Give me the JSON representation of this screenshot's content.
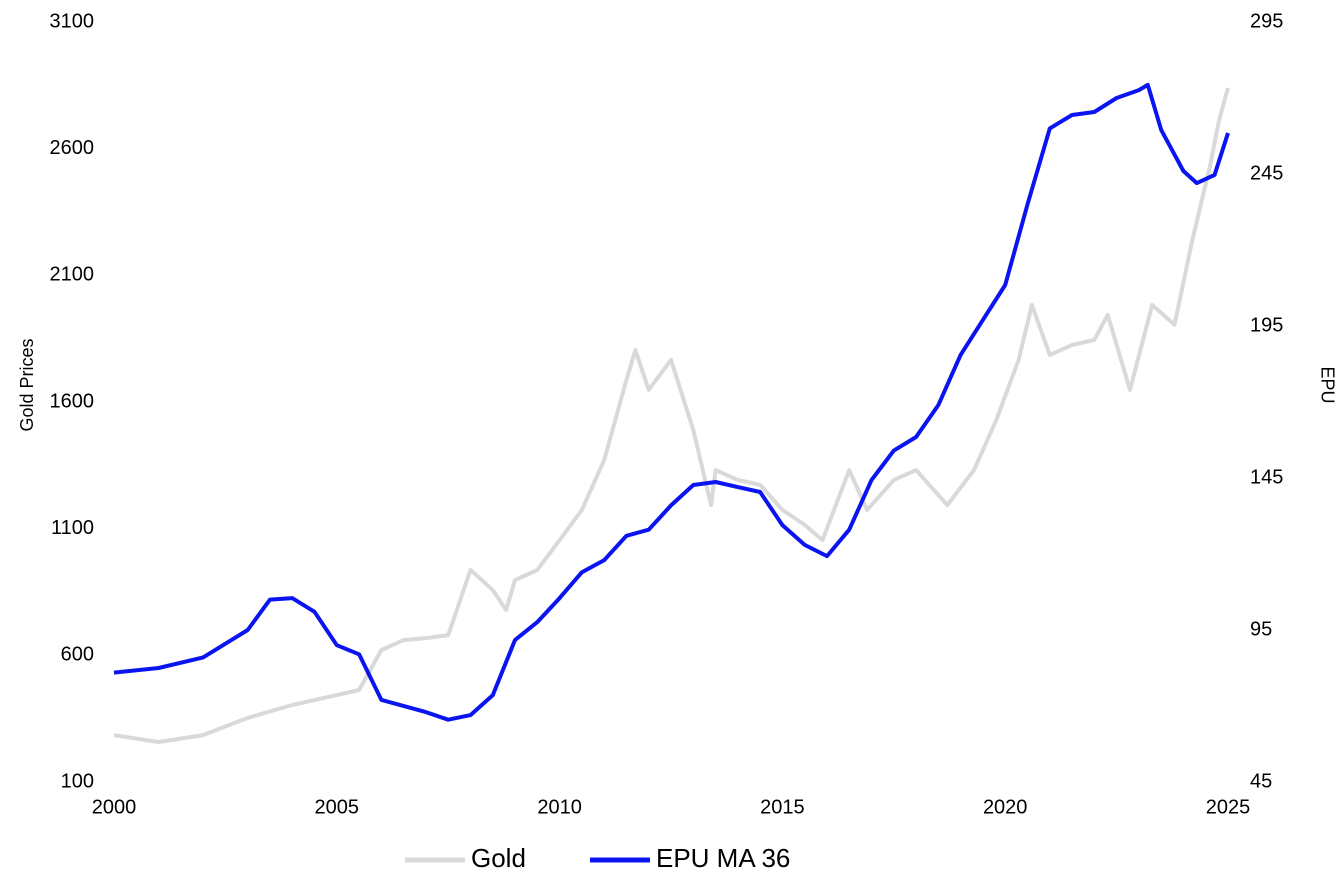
{
  "chart_data": {
    "type": "line",
    "y_label": "Gold Prices",
    "y2_label": "EPU",
    "xlim": [
      2000,
      2025
    ],
    "xticks": [
      2000,
      2005,
      2010,
      2015,
      2020,
      2025
    ],
    "ylim": [
      100,
      3100
    ],
    "yticks": [
      100,
      600,
      1100,
      1600,
      2100,
      2600,
      3100
    ],
    "y2lim": [
      45,
      295
    ],
    "y2ticks": [
      45,
      95,
      145,
      195,
      245,
      295
    ],
    "grid": false,
    "legend": "bottom",
    "series": [
      {
        "name": "Gold",
        "color": "#d9d9d9",
        "axis": "y",
        "x": [
          2000,
          2001,
          2002,
          2003,
          2004,
          2005,
          2005.5,
          2006,
          2006.5,
          2007,
          2007.5,
          2008,
          2008.5,
          2008.8,
          2009,
          2009.5,
          2010,
          2010.5,
          2011,
          2011.5,
          2011.7,
          2012,
          2012.5,
          2013,
          2013.4,
          2013.5,
          2014,
          2014.5,
          2015,
          2015.5,
          2015.9,
          2016.5,
          2016.9,
          2017.5,
          2018,
          2018.7,
          2019.3,
          2019.8,
          2020.3,
          2020.6,
          2021,
          2021.5,
          2022,
          2022.3,
          2022.8,
          2023.3,
          2023.8,
          2024.2,
          2024.6,
          2024.8,
          2025
        ],
        "values": [
          285,
          258,
          285,
          353,
          404,
          443,
          463,
          621,
          660,
          668,
          680,
          937,
          858,
          779,
          897,
          937,
          1055,
          1174,
          1371,
          1687,
          1805,
          1648,
          1766,
          1490,
          1193,
          1331,
          1292,
          1273,
          1174,
          1115,
          1055,
          1331,
          1174,
          1292,
          1331,
          1193,
          1331,
          1529,
          1766,
          1983,
          1786,
          1825,
          1845,
          1944,
          1648,
          1983,
          1905,
          2240,
          2535,
          2713,
          2840
        ]
      },
      {
        "name": "EPU MA 36",
        "color": "#0a14f0",
        "axis": "y2",
        "x": [
          2000,
          2001,
          2002,
          2003,
          2003.5,
          2004,
          2004.5,
          2005,
          2005.5,
          2006,
          2007,
          2007.5,
          2008,
          2008.5,
          2009,
          2009.5,
          2010,
          2010.5,
          2011,
          2011.5,
          2012,
          2012.5,
          2013,
          2013.5,
          2014,
          2014.5,
          2015,
          2015.5,
          2016,
          2016.5,
          2017,
          2017.5,
          2018,
          2018.5,
          2019,
          2019.5,
          2020,
          2020.5,
          2021,
          2021.5,
          2022,
          2022.5,
          2023,
          2023.2,
          2023.5,
          2024,
          2024.3,
          2024.7,
          2025
        ],
        "values": [
          81,
          82.5,
          86,
          95,
          105,
          105.5,
          101,
          90,
          87,
          72,
          68,
          65.5,
          67,
          73.6,
          91.7,
          97.6,
          105.5,
          114,
          118,
          126,
          128,
          136,
          142.7,
          143.7,
          142,
          140.4,
          129.5,
          123,
          119.3,
          128,
          144.3,
          154,
          158.5,
          169,
          185.5,
          197,
          208.5,
          235,
          260,
          264.4,
          265.4,
          270,
          272.6,
          274.3,
          259.5,
          246,
          242,
          244.7,
          258.5
        ]
      }
    ]
  }
}
